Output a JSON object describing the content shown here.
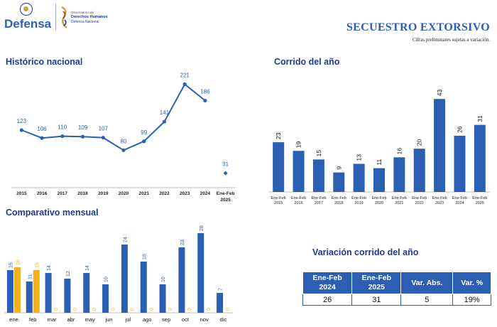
{
  "header": {
    "logo_text": "Defensa",
    "observatory_line1": "Observatorio de",
    "observatory_line2": "Derechos Humanos",
    "observatory_line3": "Defensa Nacional",
    "title": "SECUESTRO EXTORSIVO",
    "subtitle": "Cifras preliminares sujetas a variación."
  },
  "sections": {
    "historico": "Histórico nacional",
    "corrido": "Corrido del año",
    "mensual": "Comparativo mensual",
    "variacion": "Variación corrido del año"
  },
  "colors": {
    "primary": "#2b5fb4",
    "accent": "#f6b01a",
    "text": "#1f3a93"
  },
  "chart_data": [
    {
      "id": "historico",
      "type": "line",
      "title": "Histórico nacional",
      "categories": [
        "2015",
        "2016",
        "2017",
        "2018",
        "2019",
        "2020",
        "2021",
        "2022",
        "2023",
        "2024",
        "Ene-Feb 2025"
      ],
      "values": [
        123,
        106,
        110,
        109,
        107,
        80,
        99,
        141,
        221,
        186,
        31
      ],
      "point_only_last": true,
      "ylim": [
        0,
        240
      ]
    },
    {
      "id": "corrido",
      "type": "bar",
      "title": "Corrido del año",
      "categories": [
        "Ene-Feb 2015",
        "Ene-Feb 2016",
        "Ene-Feb 2017",
        "Ene-Feb 2018",
        "Ene-Feb 2019",
        "Ene-Feb 2020",
        "Ene-Feb 2021",
        "Ene-Feb 2022",
        "Ene-Feb 2023",
        "Ene-Feb 2024",
        "Ene-Feb 2025"
      ],
      "values": [
        23,
        19,
        15,
        9,
        13,
        11,
        16,
        20,
        43,
        26,
        31
      ],
      "ylim": [
        0,
        48
      ]
    },
    {
      "id": "mensual",
      "type": "bar",
      "title": "Comparativo mensual",
      "categories": [
        "ene",
        "feb",
        "mar",
        "abr",
        "may",
        "jun",
        "jul",
        "ago",
        "sep",
        "oct",
        "nov",
        "dic"
      ],
      "series": [
        {
          "values": [
            15,
            11,
            14,
            12,
            14,
            10,
            24,
            18,
            10,
            23,
            28,
            7
          ],
          "color": "#2b5fb4"
        },
        {
          "values": [
            16,
            15,
            0,
            0,
            0,
            0,
            0,
            0,
            0,
            0,
            0,
            0
          ],
          "color": "#f6b01a"
        }
      ],
      "ylim": [
        0,
        30
      ]
    }
  ],
  "variation_table": {
    "headers": [
      "Ene-Feb\n2024",
      "Ene-Feb\n2025",
      "Var. Abs.",
      "Var. %"
    ],
    "values": [
      "26",
      "31",
      "5",
      "19%"
    ]
  }
}
